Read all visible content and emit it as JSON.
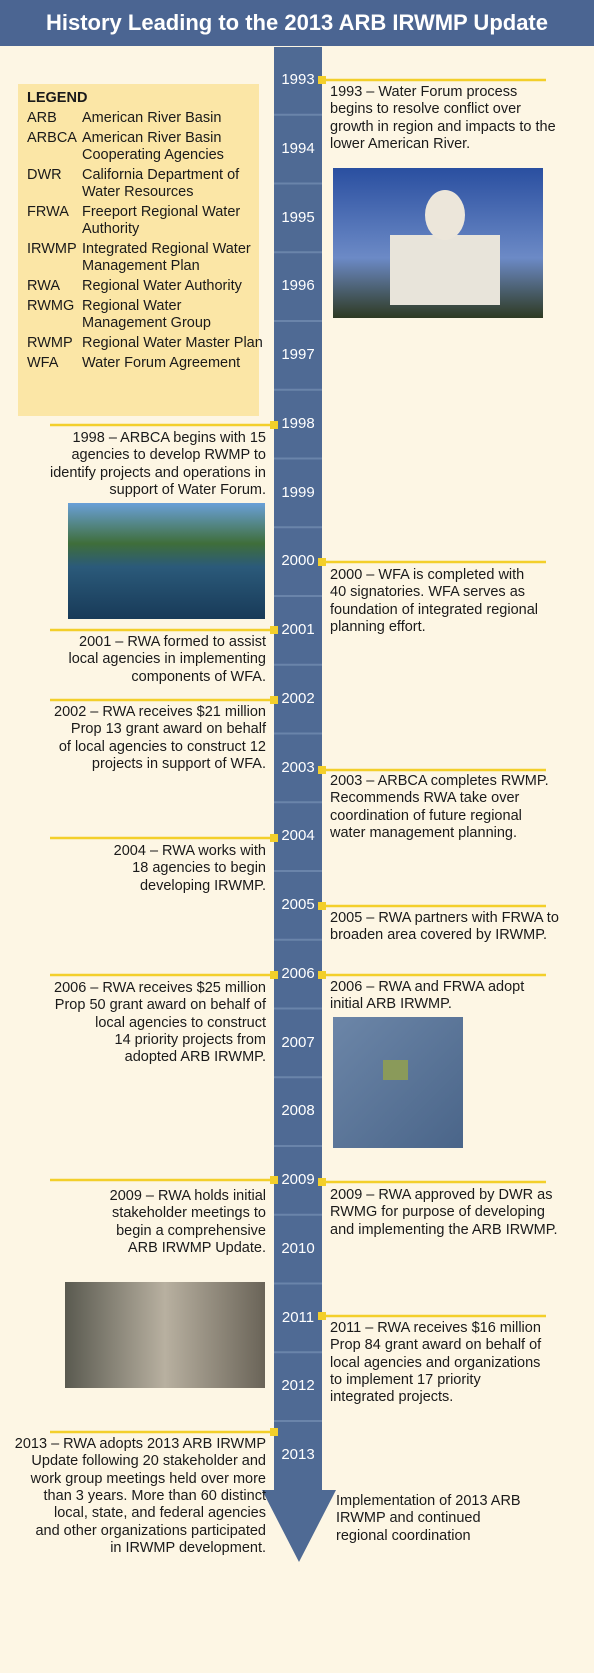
{
  "header": {
    "title": "History Leading to the 2013 ARB IRWMP Update"
  },
  "legend": {
    "title": "LEGEND",
    "items": [
      {
        "abbr": "ARB",
        "lines": [
          "American River Basin"
        ]
      },
      {
        "abbr": "ARBCA",
        "lines": [
          "American River Basin",
          "Cooperating Agencies"
        ]
      },
      {
        "abbr": "DWR",
        "lines": [
          "California Department of",
          "Water Resources"
        ]
      },
      {
        "abbr": "FRWA",
        "lines": [
          "Freeport Regional Water",
          "Authority"
        ]
      },
      {
        "abbr": "IRWMP",
        "lines": [
          "Integrated Regional Water",
          "Management Plan"
        ]
      },
      {
        "abbr": "RWA",
        "lines": [
          "Regional Water Authority"
        ]
      },
      {
        "abbr": "RWMG",
        "lines": [
          "Regional Water",
          "Management Group"
        ]
      },
      {
        "abbr": "RWMP",
        "lines": [
          "Regional Water Master Plan"
        ]
      },
      {
        "abbr": "WFA",
        "lines": [
          "Water Forum Agreement"
        ]
      }
    ]
  },
  "years": [
    "1993",
    "1994",
    "1995",
    "1996",
    "1997",
    "1998",
    "1999",
    "2000",
    "2001",
    "2002",
    "2003",
    "2004",
    "2005",
    "2006",
    "2007",
    "2008",
    "2009",
    "2010",
    "2011",
    "2012",
    "2013"
  ],
  "right_events": [
    {
      "lines": [
        "1993 – Water Forum process",
        "begins to resolve conflict over",
        "growth in region and impacts to the",
        "lower American River."
      ]
    },
    {
      "lines": [
        "2000 – WFA is completed with",
        "40 signatories.  WFA serves as",
        "foundation of integrated regional",
        "planning effort."
      ]
    },
    {
      "lines": [
        "2003 – ARBCA completes RWMP.",
        "Recommends RWA take over",
        "coordination of future regional",
        "water management planning."
      ]
    },
    {
      "lines": [
        "2005 – RWA partners with FRWA to",
        "broaden area covered by IRWMP."
      ]
    },
    {
      "lines": [
        "2006 – RWA and FRWA adopt",
        "initial ARB IRWMP."
      ]
    },
    {
      "lines": [
        "2009 – RWA approved by DWR as",
        "RWMG for purpose of developing",
        "and implementing the ARB IRWMP."
      ]
    },
    {
      "lines": [
        "2011 – RWA receives $16 million",
        "Prop 84 grant award on behalf of",
        "local agencies and organizations",
        "to implement 17 priority",
        "integrated projects."
      ]
    }
  ],
  "left_events": [
    {
      "lines": [
        "1998 – ARBCA begins with 15",
        "agencies to develop RWMP to",
        "identify projects and operations in",
        "support of Water Forum."
      ]
    },
    {
      "lines": [
        "2001 – RWA formed to assist",
        "local agencies in implementing",
        "components of WFA."
      ]
    },
    {
      "lines": [
        "2002 – RWA receives $21 million",
        "Prop 13 grant award on behalf",
        "of local agencies to construct 12",
        "projects in support of WFA."
      ]
    },
    {
      "lines": [
        "2004 – RWA works with",
        "18 agencies to begin",
        "developing IRWMP."
      ]
    },
    {
      "lines": [
        "2006 – RWA receives $25 million",
        "Prop 50 grant award on behalf of",
        "local agencies to construct",
        "14 priority projects from",
        "adopted ARB IRWMP."
      ]
    },
    {
      "lines": [
        "2009 – RWA holds initial",
        "stakeholder meetings to",
        "begin a comprehensive",
        "ARB IRWMP Update."
      ]
    },
    {
      "lines": [
        "2013 – RWA adopts 2013 ARB IRWMP",
        "Update following 20 stakeholder and",
        "work group meetings held over more",
        "than 3 years.  More than 60 distinct",
        "local, state, and federal agencies",
        "and other organizations participated",
        "in IRWMP development."
      ]
    }
  ],
  "closing_note": {
    "lines": [
      "Implementation of 2013 ARB",
      "IRWMP and continued",
      "regional coordination"
    ]
  }
}
